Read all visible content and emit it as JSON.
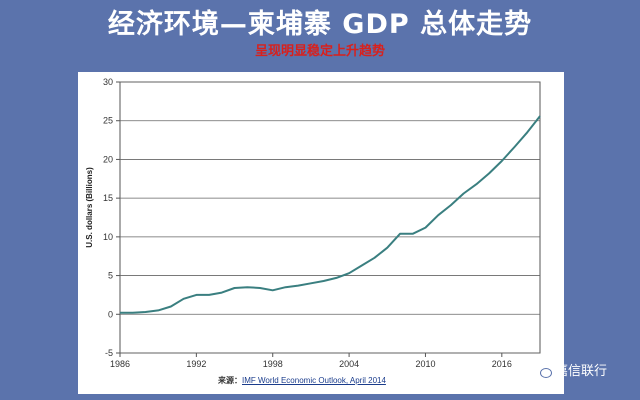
{
  "slide": {
    "title": "经济环境—柬埔寨 GDP 总体走势",
    "subtitle": "呈现明显稳定上升趋势"
  },
  "source": {
    "label": "来源：",
    "text": "IMF World Economic Outlook, April 2014"
  },
  "watermark": {
    "text": "嘉信联行",
    "icon": "wechat-icon"
  },
  "colors": {
    "background": "#5b73ac",
    "title": "#ffffff",
    "subtitle": "#d9201c",
    "line": "#3a7f80"
  },
  "chart_data": {
    "type": "line",
    "title": "",
    "xlabel": "",
    "ylabel": "U.S. dollars (Billions)",
    "xlim": [
      1986,
      2019
    ],
    "ylim": [
      -5,
      30
    ],
    "xticks": [
      1986,
      1992,
      1998,
      2004,
      2010,
      2016
    ],
    "yticks": [
      -5,
      0,
      5,
      10,
      15,
      20,
      25,
      30
    ],
    "grid": "horizontal",
    "legend": "none",
    "series": [
      {
        "x": [
          1986,
          1987,
          1988,
          1989,
          1990,
          1991,
          1992,
          1993,
          1994,
          1995,
          1996,
          1997,
          1998,
          1999,
          2000,
          2001,
          2002,
          2003,
          2004,
          2005,
          2006,
          2007,
          2008,
          2009,
          2010,
          2011,
          2012,
          2013,
          2014,
          2015,
          2016,
          2017,
          2018,
          2019
        ],
        "y": [
          0.2,
          0.2,
          0.3,
          0.5,
          1.0,
          2.0,
          2.5,
          2.5,
          2.8,
          3.4,
          3.5,
          3.4,
          3.1,
          3.5,
          3.7,
          4.0,
          4.3,
          4.7,
          5.3,
          6.3,
          7.3,
          8.6,
          10.4,
          10.4,
          11.2,
          12.8,
          14.1,
          15.6,
          16.8,
          18.2,
          19.8,
          21.6,
          23.5,
          25.6
        ]
      }
    ]
  }
}
